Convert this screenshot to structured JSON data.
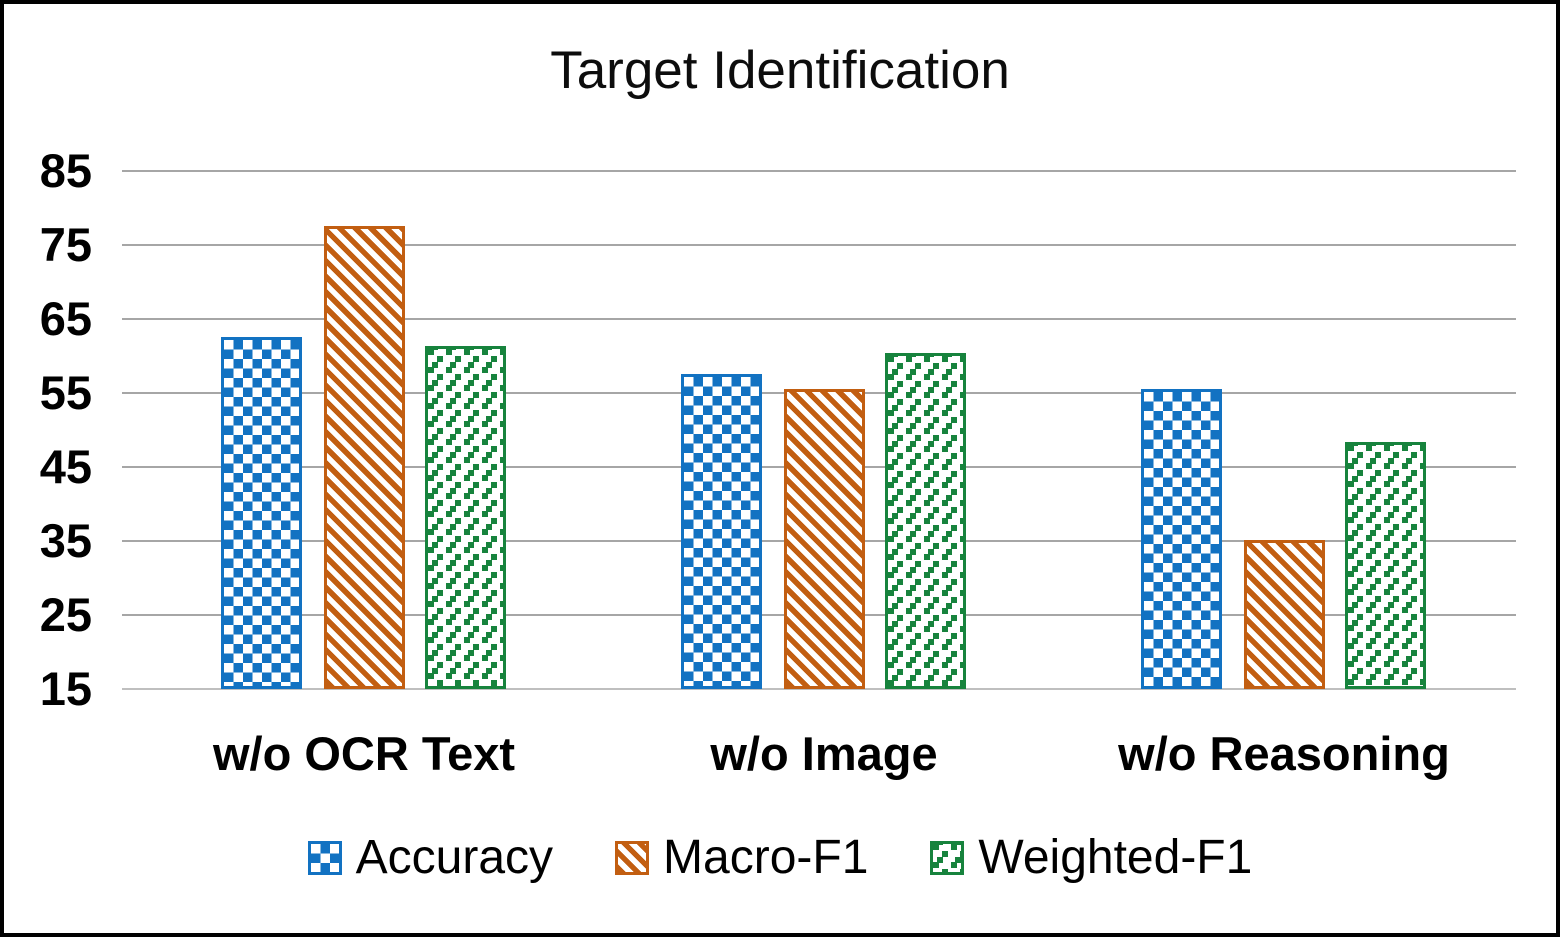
{
  "chart_data": {
    "type": "bar",
    "title": "Target Identification",
    "categories": [
      "w/o OCR Text",
      "w/o Image",
      "w/o Reasoning"
    ],
    "series": [
      {
        "name": "Accuracy",
        "pattern": "blue-checkerboard",
        "color": "#1272C2",
        "values": [
          62.6,
          57.5,
          55.5
        ]
      },
      {
        "name": "Macro-F1",
        "pattern": "orange-diagonal-stripes",
        "color": "#C25E11",
        "values": [
          77.5,
          55.6,
          35.1
        ]
      },
      {
        "name": "Weighted-F1",
        "pattern": "green-dotted-squares",
        "color": "#17833D",
        "values": [
          61.4,
          60.4,
          48.4
        ]
      }
    ],
    "ylim": [
      15,
      85
    ],
    "yticks": [
      15,
      25,
      35,
      45,
      55,
      65,
      75,
      85
    ],
    "grid": "horizontal",
    "legend_position": "bottom",
    "gridline_color": "#A6A6A6",
    "baseline_color": "#BFBFBF",
    "frame_color": "#000000"
  }
}
